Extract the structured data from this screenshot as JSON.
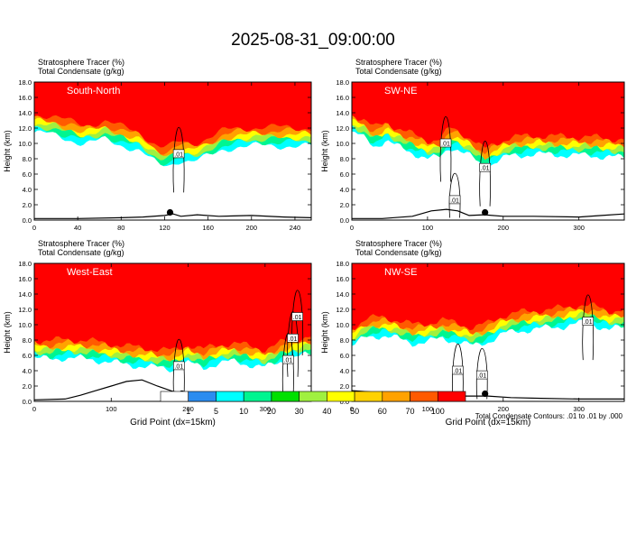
{
  "title": "2025-08-31_09:00:00",
  "footnote": "Total Condensate Contours: .01 to .01 by .000",
  "contour_label": ".01",
  "colors": {
    "tracer_levels": [
      "#ffffff",
      "#2b8cf0",
      "#00ffff",
      "#00f590",
      "#00e000",
      "#a0f040",
      "#ffff00",
      "#ffd200",
      "#ffa200",
      "#ff5a00",
      "#ff0000"
    ],
    "terrain": "#000000",
    "contour": "#000000"
  },
  "colorbar": {
    "labels": [
      "1",
      "5",
      "10",
      "20",
      "30",
      "40",
      "50",
      "60",
      "70",
      "100"
    ]
  },
  "chart_data": [
    {
      "type": "heatmap",
      "panel": "top-left",
      "label": "South-North",
      "header": [
        "Stratosphere Tracer   (%)",
        "Total Condensate   (g/kg)"
      ],
      "ylabel": "Height (km)",
      "xlabel": "",
      "xlim": [
        0,
        255
      ],
      "ylim": [
        0,
        18
      ],
      "xticks": [
        "0",
        "40",
        "80",
        "120",
        "160",
        "200",
        "240"
      ],
      "xtick_values": [
        0,
        40,
        80,
        120,
        160,
        200,
        240
      ],
      "yticks": [
        "0.0",
        "2.0",
        "4.0",
        "6.0",
        "8.0",
        "10.0",
        "12.0",
        "14.0",
        "16.0",
        "18.0"
      ],
      "tropopause_km": [
        [
          0,
          13.8
        ],
        [
          15,
          13.6
        ],
        [
          30,
          13.0
        ],
        [
          45,
          12.4
        ],
        [
          55,
          12.6
        ],
        [
          65,
          12.9
        ],
        [
          80,
          12.2
        ],
        [
          95,
          11.6
        ],
        [
          105,
          10.6
        ],
        [
          115,
          9.5
        ],
        [
          125,
          9.6
        ],
        [
          135,
          10.3
        ],
        [
          145,
          10.0
        ],
        [
          155,
          10.4
        ],
        [
          165,
          11.0
        ],
        [
          175,
          11.7
        ],
        [
          190,
          12.0
        ],
        [
          210,
          12.1
        ],
        [
          230,
          12.1
        ],
        [
          255,
          12.0
        ]
      ],
      "terrain_km": [
        [
          0,
          0.2
        ],
        [
          40,
          0.2
        ],
        [
          80,
          0.3
        ],
        [
          100,
          0.4
        ],
        [
          120,
          0.6
        ],
        [
          128,
          0.8
        ],
        [
          135,
          0.5
        ],
        [
          150,
          0.7
        ],
        [
          170,
          0.5
        ],
        [
          200,
          0.6
        ],
        [
          230,
          0.4
        ],
        [
          255,
          0.3
        ]
      ],
      "marker": [
        125,
        1.0
      ],
      "contour_labels": [
        [
          133,
          8.6
        ]
      ]
    },
    {
      "type": "heatmap",
      "panel": "top-right",
      "label": "SW-NE",
      "header": [
        "Stratosphere Tracer   (%)",
        "Total Condensate   (g/kg)"
      ],
      "ylabel": "Height (km)",
      "xlabel": "",
      "xlim": [
        0,
        360
      ],
      "ylim": [
        0,
        18
      ],
      "xticks": [
        "0",
        "100",
        "200",
        "300"
      ],
      "xtick_values": [
        0,
        100,
        200,
        300
      ],
      "yticks": [
        "0.0",
        "2.0",
        "4.0",
        "6.0",
        "8.0",
        "10.0",
        "12.0",
        "14.0",
        "16.0",
        "18.0"
      ],
      "tropopause_km": [
        [
          0,
          13.8
        ],
        [
          15,
          13.2
        ],
        [
          30,
          12.0
        ],
        [
          45,
          12.8
        ],
        [
          60,
          12.0
        ],
        [
          80,
          11.2
        ],
        [
          100,
          10.4
        ],
        [
          115,
          10.5
        ],
        [
          130,
          12.0
        ],
        [
          140,
          11.6
        ],
        [
          160,
          10.5
        ],
        [
          175,
          9.2
        ],
        [
          190,
          10.0
        ],
        [
          210,
          10.8
        ],
        [
          240,
          11.0
        ],
        [
          280,
          10.9
        ],
        [
          320,
          10.8
        ],
        [
          360,
          10.5
        ]
      ],
      "terrain_km": [
        [
          0,
          0.2
        ],
        [
          40,
          0.2
        ],
        [
          80,
          0.5
        ],
        [
          105,
          1.2
        ],
        [
          125,
          1.4
        ],
        [
          140,
          1.2
        ],
        [
          155,
          0.6
        ],
        [
          175,
          0.7
        ],
        [
          200,
          0.5
        ],
        [
          240,
          0.5
        ],
        [
          300,
          0.4
        ],
        [
          330,
          0.6
        ],
        [
          360,
          0.8
        ]
      ],
      "marker": [
        176,
        1.0
      ],
      "contour_labels": [
        [
          124,
          10.0
        ],
        [
          176,
          6.8
        ],
        [
          136,
          2.6
        ]
      ]
    },
    {
      "type": "heatmap",
      "panel": "bottom-left",
      "label": "West-East",
      "header": [
        "Stratosphere Tracer   (%)",
        "Total Condensate   (g/kg)"
      ],
      "ylabel": "Height (km)",
      "xlabel": "Grid Point (dx=15km)",
      "xlim": [
        0,
        360
      ],
      "ylim": [
        0,
        18
      ],
      "xticks": [
        "0",
        "100",
        "200",
        "300"
      ],
      "xtick_values": [
        0,
        100,
        200,
        300
      ],
      "yticks": [
        "0.0",
        "2.0",
        "4.0",
        "6.0",
        "8.0",
        "10.0",
        "12.0",
        "14.0",
        "16.0",
        "18.0"
      ],
      "tropopause_km": [
        [
          0,
          8.0
        ],
        [
          20,
          7.9
        ],
        [
          40,
          8.1
        ],
        [
          60,
          8.0
        ],
        [
          80,
          7.8
        ],
        [
          100,
          7.5
        ],
        [
          120,
          7.2
        ],
        [
          140,
          7.0
        ],
        [
          160,
          6.8
        ],
        [
          180,
          6.6
        ],
        [
          200,
          7.4
        ],
        [
          220,
          6.8
        ],
        [
          240,
          7.4
        ],
        [
          260,
          7.6
        ],
        [
          280,
          7.2
        ],
        [
          300,
          6.8
        ],
        [
          320,
          7.6
        ],
        [
          340,
          8.2
        ],
        [
          360,
          8.5
        ]
      ],
      "terrain_km": [
        [
          0,
          0.2
        ],
        [
          40,
          0.3
        ],
        [
          60,
          0.8
        ],
        [
          80,
          1.4
        ],
        [
          100,
          2.0
        ],
        [
          120,
          2.6
        ],
        [
          140,
          2.8
        ],
        [
          160,
          2.0
        ],
        [
          180,
          1.3
        ],
        [
          200,
          0.9
        ],
        [
          220,
          0.6
        ],
        [
          250,
          0.6
        ],
        [
          280,
          0.5
        ],
        [
          320,
          0.5
        ],
        [
          360,
          0.4
        ]
      ],
      "marker": [
        192,
        1.0
      ],
      "contour_labels": [
        [
          188,
          4.6
        ],
        [
          342,
          11.0
        ],
        [
          336,
          8.2
        ],
        [
          330,
          5.4
        ]
      ]
    },
    {
      "type": "heatmap",
      "panel": "bottom-right",
      "label": "NW-SE",
      "header": [
        "Stratosphere Tracer   (%)",
        "Total Condensate   (g/kg)"
      ],
      "ylabel": "Height (km)",
      "xlabel": "Grid Point (dx=15km)",
      "xlim": [
        0,
        360
      ],
      "ylim": [
        0,
        18
      ],
      "xticks": [
        "0",
        "100",
        "200",
        "300"
      ],
      "xtick_values": [
        0,
        100,
        200,
        300
      ],
      "yticks": [
        "0.0",
        "2.0",
        "4.0",
        "6.0",
        "8.0",
        "10.0",
        "12.0",
        "14.0",
        "16.0",
        "18.0"
      ],
      "tropopause_km": [
        [
          0,
          9.6
        ],
        [
          20,
          10.8
        ],
        [
          40,
          11.0
        ],
        [
          60,
          10.6
        ],
        [
          80,
          10.0
        ],
        [
          100,
          10.2
        ],
        [
          120,
          10.6
        ],
        [
          140,
          10.2
        ],
        [
          160,
          9.6
        ],
        [
          180,
          10.2
        ],
        [
          200,
          11.2
        ],
        [
          220,
          11.6
        ],
        [
          240,
          11.8
        ],
        [
          260,
          12.0
        ],
        [
          280,
          12.2
        ],
        [
          300,
          12.6
        ],
        [
          320,
          12.4
        ],
        [
          340,
          11.8
        ],
        [
          360,
          12.0
        ]
      ],
      "terrain_km": [
        [
          0,
          1.4
        ],
        [
          30,
          1.2
        ],
        [
          60,
          1.0
        ],
        [
          90,
          0.9
        ],
        [
          120,
          0.8
        ],
        [
          150,
          0.7
        ],
        [
          180,
          0.7
        ],
        [
          210,
          0.5
        ],
        [
          250,
          0.4
        ],
        [
          300,
          0.3
        ],
        [
          360,
          0.3
        ]
      ],
      "marker": [
        176,
        1.0
      ],
      "contour_labels": [
        [
          312,
          10.4
        ],
        [
          140,
          4.0
        ],
        [
          172,
          3.4
        ]
      ]
    }
  ]
}
